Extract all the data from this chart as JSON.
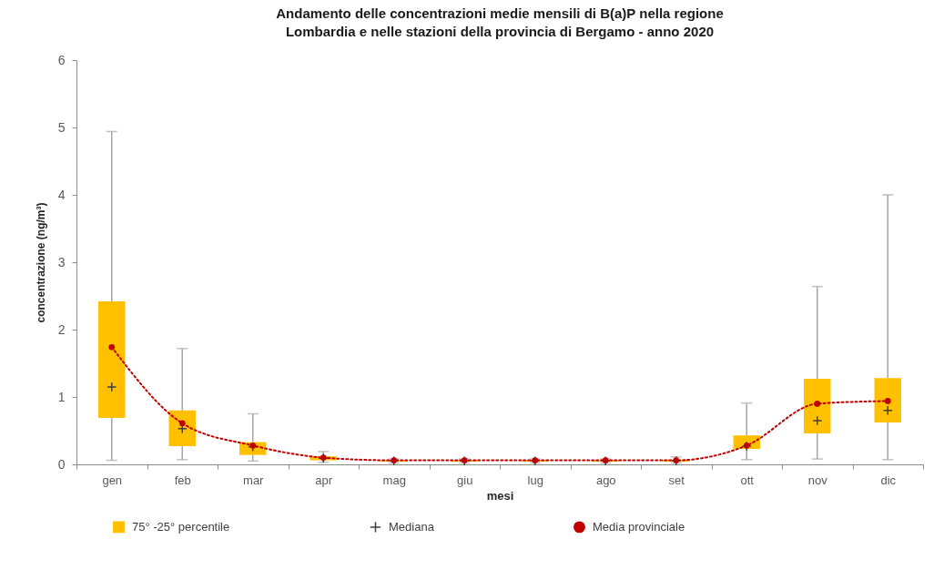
{
  "chart_data": {
    "type": "box",
    "title": "Andamento delle concentrazioni medie mensili di B(a)P nella regione\nLombardia e nelle stazioni della provincia di Bergamo - anno 2020",
    "xlabel": "mesi",
    "ylabel": "concentrazione (ng/m³)",
    "categories": [
      "gen",
      "feb",
      "mar",
      "apr",
      "mag",
      "giu",
      "lug",
      "ago",
      "set",
      "ott",
      "nov",
      "dic"
    ],
    "ylim": [
      0,
      6
    ],
    "yticks": [
      0,
      1,
      2,
      3,
      4,
      5,
      6
    ],
    "legend": "bottom",
    "annotations": [
      "Mediana"
    ],
    "series": [
      {
        "name": "75° -25° percentile",
        "type": "box",
        "color": "#ffc000",
        "boxes": [
          {
            "low": 0.06,
            "q1": 0.69,
            "median": 1.15,
            "q3": 2.42,
            "high": 4.94
          },
          {
            "low": 0.07,
            "q1": 0.27,
            "median": 0.53,
            "q3": 0.8,
            "high": 1.72
          },
          {
            "low": 0.05,
            "q1": 0.14,
            "median": 0.26,
            "q3": 0.33,
            "high": 0.75
          },
          {
            "low": 0.03,
            "q1": 0.06,
            "median": 0.09,
            "q3": 0.12,
            "high": 0.19
          },
          {
            "low": 0.02,
            "q1": 0.04,
            "median": 0.05,
            "q3": 0.06,
            "high": 0.08
          },
          {
            "low": 0.02,
            "q1": 0.04,
            "median": 0.05,
            "q3": 0.06,
            "high": 0.08
          },
          {
            "low": 0.02,
            "q1": 0.04,
            "median": 0.05,
            "q3": 0.06,
            "high": 0.08
          },
          {
            "low": 0.02,
            "q1": 0.04,
            "median": 0.05,
            "q3": 0.06,
            "high": 0.08
          },
          {
            "low": 0.02,
            "q1": 0.04,
            "median": 0.05,
            "q3": 0.07,
            "high": 0.11
          },
          {
            "low": 0.07,
            "q1": 0.23,
            "median": 0.27,
            "q3": 0.43,
            "high": 0.91
          },
          {
            "low": 0.08,
            "q1": 0.46,
            "median": 0.65,
            "q3": 1.27,
            "high": 2.64
          },
          {
            "low": 0.07,
            "q1": 0.62,
            "median": 0.8,
            "q3": 1.28,
            "high": 4.0
          }
        ]
      },
      {
        "name": "Media provinciale",
        "type": "line",
        "color": "#c00000",
        "line_style": "dotted",
        "marker": "circle",
        "values": [
          1.74,
          0.61,
          0.28,
          0.1,
          0.06,
          0.06,
          0.06,
          0.06,
          0.06,
          0.28,
          0.9,
          0.94
        ]
      }
    ]
  }
}
